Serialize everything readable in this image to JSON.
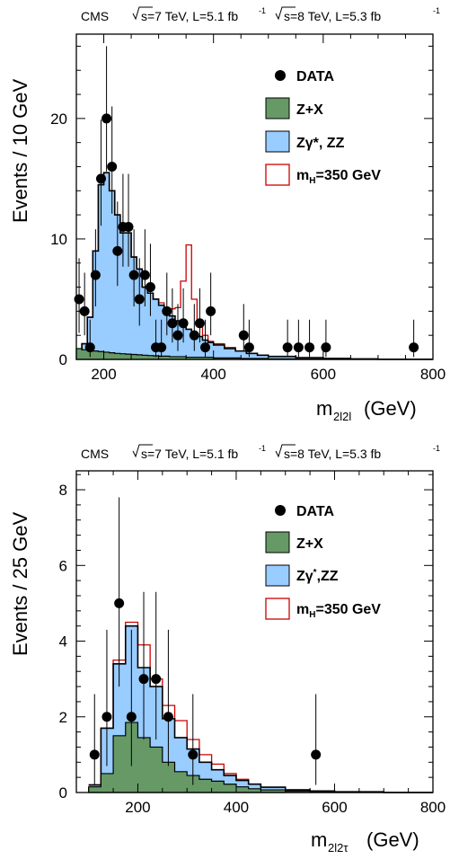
{
  "chart_data": [
    {
      "type": "histogram",
      "header_left": "CMS",
      "header_7tev": "s=7 TeV, L=5.1 fb",
      "header_7tev_sup": "-1",
      "header_8tev": "s=8 TeV, L=5.3 fb",
      "header_8tev_sup": "-1",
      "ylabel": "Events / 10 GeV",
      "xlabel_main": "m",
      "xlabel_sub": "2l2l",
      "xlabel_unit": "(GeV)",
      "xlim": [
        150,
        800
      ],
      "ylim": [
        0,
        27
      ],
      "xticks": [
        200,
        400,
        600,
        800
      ],
      "yticks": [
        0,
        10,
        20
      ],
      "bin_width": 10,
      "legend": {
        "data": "DATA",
        "zx": "Z+X",
        "zz_main": "Zγ*, ZZ",
        "signal_main": "m",
        "signal_sub": "H",
        "signal_rest": "=350 GeV"
      },
      "series": {
        "zx_edges": [
          150,
          160,
          170,
          180,
          190,
          200,
          210,
          220,
          230,
          240,
          250,
          260,
          270,
          280,
          290,
          300,
          320,
          350,
          400,
          450,
          500,
          550,
          600,
          650,
          700,
          750,
          800
        ],
        "zx_values": [
          0.9,
          0.8,
          0.75,
          0.7,
          0.65,
          0.6,
          0.55,
          0.5,
          0.47,
          0.44,
          0.41,
          0.38,
          0.35,
          0.32,
          0.3,
          0.27,
          0.23,
          0.18,
          0.12,
          0.08,
          0.05,
          0.035,
          0.02,
          0.01,
          0.005,
          0.0
        ],
        "zz_edges": [
          150,
          160,
          170,
          180,
          190,
          200,
          210,
          220,
          230,
          240,
          250,
          260,
          270,
          280,
          290,
          300,
          310,
          320,
          330,
          340,
          350,
          360,
          370,
          380,
          390,
          400,
          420,
          440,
          460,
          480,
          500,
          550,
          600,
          650,
          700,
          800
        ],
        "zz_values": [
          0.7,
          1.3,
          3.5,
          9.0,
          14.5,
          15.5,
          14.0,
          12.0,
          10.5,
          10.5,
          8.5,
          7.5,
          6.0,
          5.5,
          5.0,
          4.5,
          4.0,
          3.6,
          3.2,
          2.8,
          2.5,
          2.2,
          1.9,
          1.6,
          1.4,
          1.2,
          0.9,
          0.7,
          0.5,
          0.35,
          0.25,
          0.15,
          0.08,
          0.04,
          0.01
        ],
        "signal_values": [
          0.7,
          1.3,
          3.5,
          9.0,
          14.5,
          15.5,
          14.0,
          12.0,
          10.5,
          10.5,
          8.5,
          7.5,
          6.0,
          5.5,
          5.0,
          4.7,
          4.3,
          4.2,
          4.3,
          6.5,
          9.5,
          5.0,
          3.0,
          2.0,
          1.5,
          1.3,
          1.0,
          0.7,
          0.5,
          0.35,
          0.25,
          0.15,
          0.08,
          0.04,
          0.01
        ],
        "data_points": [
          {
            "x": 155,
            "y": 5,
            "lo": 2.8,
            "hi": 3.4
          },
          {
            "x": 165,
            "y": 4,
            "lo": 2.0,
            "hi": 3.2
          },
          {
            "x": 175,
            "y": 1,
            "lo": 0.8,
            "hi": 2.3
          },
          {
            "x": 185,
            "y": 7,
            "lo": 2.6,
            "hi": 3.8
          },
          {
            "x": 195,
            "y": 15,
            "lo": 3.9,
            "hi": 4.9
          },
          {
            "x": 205,
            "y": 20,
            "lo": 4.4,
            "hi": 6.0
          },
          {
            "x": 215,
            "y": 16,
            "lo": 3.9,
            "hi": 5.0
          },
          {
            "x": 225,
            "y": 9,
            "lo": 2.9,
            "hi": 4.1
          },
          {
            "x": 235,
            "y": 11,
            "lo": 3.3,
            "hi": 4.4
          },
          {
            "x": 245,
            "y": 11,
            "lo": 3.3,
            "hi": 4.4
          },
          {
            "x": 255,
            "y": 7,
            "lo": 2.6,
            "hi": 3.8
          },
          {
            "x": 265,
            "y": 5,
            "lo": 2.2,
            "hi": 3.4
          },
          {
            "x": 275,
            "y": 7,
            "lo": 2.6,
            "hi": 3.8
          },
          {
            "x": 285,
            "y": 6,
            "lo": 2.4,
            "hi": 3.6
          },
          {
            "x": 295,
            "y": 1,
            "lo": 0.8,
            "hi": 2.3
          },
          {
            "x": 305,
            "y": 1,
            "lo": 0.8,
            "hi": 2.3
          },
          {
            "x": 315,
            "y": 4,
            "lo": 2.0,
            "hi": 3.2
          },
          {
            "x": 325,
            "y": 3,
            "lo": 1.6,
            "hi": 2.9
          },
          {
            "x": 335,
            "y": 2,
            "lo": 1.3,
            "hi": 2.6
          },
          {
            "x": 345,
            "y": 3,
            "lo": 1.6,
            "hi": 2.9
          },
          {
            "x": 365,
            "y": 2,
            "lo": 1.3,
            "hi": 2.6
          },
          {
            "x": 375,
            "y": 3,
            "lo": 1.6,
            "hi": 2.9
          },
          {
            "x": 385,
            "y": 1,
            "lo": 0.8,
            "hi": 2.3
          },
          {
            "x": 395,
            "y": 4,
            "lo": 2.0,
            "hi": 3.2
          },
          {
            "x": 455,
            "y": 2,
            "lo": 1.3,
            "hi": 2.6
          },
          {
            "x": 465,
            "y": 1,
            "lo": 0.8,
            "hi": 2.3
          },
          {
            "x": 535,
            "y": 1,
            "lo": 0.8,
            "hi": 2.3
          },
          {
            "x": 555,
            "y": 1,
            "lo": 0.8,
            "hi": 2.3
          },
          {
            "x": 575,
            "y": 1,
            "lo": 0.8,
            "hi": 2.3
          },
          {
            "x": 605,
            "y": 1,
            "lo": 0.8,
            "hi": 2.3
          },
          {
            "x": 765,
            "y": 1,
            "lo": 0.8,
            "hi": 2.3
          }
        ]
      },
      "colors": {
        "zx": "#669966",
        "zz": "#99ccff",
        "signal": "#cc0000",
        "data": "#000000"
      }
    },
    {
      "type": "histogram",
      "header_left": "CMS",
      "header_7tev": "s=7 TeV, L=5.1 fb",
      "header_7tev_sup": "-1",
      "header_8tev": "s=8 TeV, L=5.3 fb",
      "header_8tev_sup": "-1",
      "ylabel": "Events / 25 GeV",
      "xlabel_main": "m",
      "xlabel_sub": "2l2τ",
      "xlabel_unit": "(GeV)",
      "xlim": [
        75,
        800
      ],
      "ylim": [
        0,
        8.5
      ],
      "xticks": [
        200,
        400,
        600,
        800
      ],
      "yticks": [
        0,
        2,
        4,
        6,
        8
      ],
      "bin_width": 25,
      "legend": {
        "data": "DATA",
        "zx": "Z+X",
        "zz_main": "Zγ",
        "zz_sup": "*",
        "zz_rest": ",ZZ",
        "signal_main": "m",
        "signal_sub": "H",
        "signal_rest": "=350 GeV"
      },
      "series": {
        "zx_edges": [
          100,
          125,
          150,
          175,
          200,
          225,
          250,
          275,
          300,
          325,
          350,
          375,
          400,
          425,
          450,
          500,
          550,
          600,
          700,
          800
        ],
        "zx_values": [
          0.15,
          0.5,
          1.5,
          1.85,
          1.45,
          1.2,
          0.8,
          0.55,
          0.45,
          0.35,
          0.3,
          0.22,
          0.15,
          0.1,
          0.07,
          0.04,
          0.02,
          0.01,
          0.0
        ],
        "zz_edges": [
          100,
          125,
          150,
          175,
          200,
          225,
          250,
          275,
          300,
          325,
          350,
          375,
          400,
          425,
          450,
          500,
          550,
          600,
          700,
          800
        ],
        "zz_values": [
          0.2,
          1.7,
          3.4,
          4.4,
          3.3,
          2.8,
          1.95,
          1.45,
          1.15,
          0.8,
          0.6,
          0.45,
          0.32,
          0.22,
          0.14,
          0.07,
          0.04,
          0.02,
          0.0
        ],
        "signal_values": [
          0.2,
          1.7,
          3.5,
          4.5,
          3.9,
          3.0,
          2.3,
          1.9,
          1.4,
          1.0,
          0.75,
          0.5,
          0.35,
          0.22,
          0.14,
          0.07,
          0.04,
          0.02,
          0.0
        ],
        "data_points": [
          {
            "x": 112,
            "y": 1,
            "lo": 0.8,
            "hi": 1.6
          },
          {
            "x": 137,
            "y": 2,
            "lo": 1.3,
            "hi": 2.3
          },
          {
            "x": 162,
            "y": 5,
            "lo": 2.2,
            "hi": 2.8
          },
          {
            "x": 187,
            "y": 2,
            "lo": 1.3,
            "hi": 2.3
          },
          {
            "x": 212,
            "y": 3,
            "lo": 1.6,
            "hi": 2.3
          },
          {
            "x": 237,
            "y": 3,
            "lo": 1.6,
            "hi": 2.3
          },
          {
            "x": 262,
            "y": 2,
            "lo": 1.3,
            "hi": 2.3
          },
          {
            "x": 312,
            "y": 1,
            "lo": 0.8,
            "hi": 1.6
          },
          {
            "x": 562,
            "y": 1,
            "lo": 0.8,
            "hi": 1.6
          }
        ]
      },
      "colors": {
        "zx": "#669966",
        "zz": "#99ccff",
        "signal": "#cc0000",
        "data": "#000000"
      }
    }
  ]
}
